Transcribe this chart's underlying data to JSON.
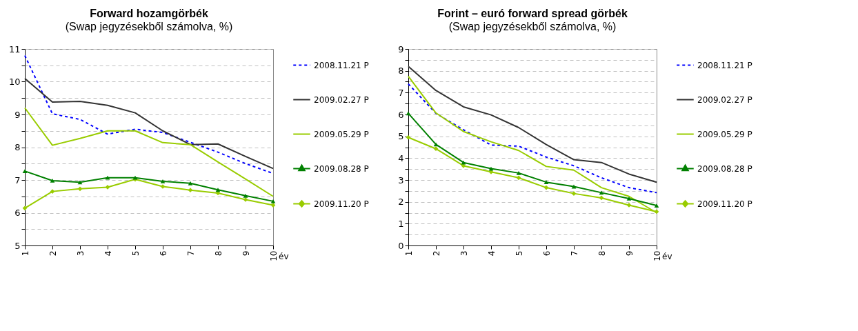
{
  "chart_data": [
    {
      "type": "line",
      "title": "Forward hozamgörbék",
      "subtitle": "(Swap jegyzésekből számolva, %)",
      "xlabel": "év",
      "categories": [
        "1",
        "2",
        "3",
        "4",
        "5",
        "6",
        "7",
        "8",
        "9",
        "10"
      ],
      "ylim": [
        5,
        11
      ],
      "yticks": [
        5,
        {
          "value": 5.5,
          "label": null
        },
        6,
        {
          "value": 6.5,
          "label": null
        },
        7,
        {
          "value": 7.5,
          "label": null
        },
        8,
        {
          "value": 8.5,
          "label": null
        },
        9,
        {
          "value": 9.5,
          "label": null
        },
        10,
        {
          "value": 10.5,
          "label": null
        },
        11
      ],
      "grid": "y",
      "legend": "right",
      "series": [
        {
          "name": "2008.11.21 P",
          "color": "#0000ff",
          "line_style": "dashed",
          "marker": "none",
          "values": [
            10.8,
            9.02,
            8.85,
            8.4,
            8.55,
            8.45,
            8.15,
            7.85,
            7.5,
            7.2
          ]
        },
        {
          "name": "2009.02.27 P",
          "color": "#333333",
          "line_style": "solid",
          "marker": "none",
          "values": [
            10.1,
            9.38,
            9.4,
            9.28,
            9.05,
            8.5,
            8.08,
            8.1,
            7.72,
            7.35
          ]
        },
        {
          "name": "2009.05.29 P",
          "color": "#99cc00",
          "line_style": "solid",
          "marker": "none",
          "values": [
            9.2,
            8.06,
            8.27,
            8.5,
            8.5,
            8.14,
            8.08,
            7.55,
            7.03,
            6.5
          ]
        },
        {
          "name": "2009.08.28 P",
          "color": "#008000",
          "line_style": "solid",
          "marker": "triangle",
          "values": [
            7.27,
            6.98,
            6.93,
            7.07,
            7.07,
            6.96,
            6.9,
            6.7,
            6.52,
            6.35
          ]
        },
        {
          "name": "2009.11.20 P",
          "color": "#99cc00",
          "line_style": "solid",
          "marker": "diamond",
          "values": [
            6.14,
            6.65,
            6.73,
            6.78,
            7.02,
            6.8,
            6.69,
            6.6,
            6.4,
            6.23
          ]
        }
      ]
    },
    {
      "type": "line",
      "title": "Forint – euró forward spread görbék",
      "subtitle": "(Swap jegyzésekből számolva, %)",
      "xlabel": "év",
      "categories": [
        "1",
        "2",
        "3",
        "4",
        "5",
        "6",
        "7",
        "8",
        "9",
        "10"
      ],
      "ylim": [
        0,
        9
      ],
      "yticks": [
        0,
        {
          "value": 0.5,
          "label": null
        },
        1,
        {
          "value": 1.5,
          "label": null
        },
        2,
        {
          "value": 2.5,
          "label": null
        },
        3,
        {
          "value": 3.5,
          "label": null
        },
        4,
        {
          "value": 4.5,
          "label": null
        },
        5,
        {
          "value": 5.5,
          "label": null
        },
        6,
        {
          "value": 6.5,
          "label": null
        },
        7,
        {
          "value": 7.5,
          "label": null
        },
        8,
        {
          "value": 8.5,
          "label": null
        },
        9
      ],
      "grid": "y",
      "legend": "right",
      "series": [
        {
          "name": "2008.11.21 P",
          "color": "#0000ff",
          "line_style": "dashed",
          "marker": "none",
          "values": [
            7.4,
            6.05,
            5.3,
            4.6,
            4.55,
            4.05,
            3.65,
            3.1,
            2.65,
            2.42
          ]
        },
        {
          "name": "2009.02.27 P",
          "color": "#333333",
          "line_style": "solid",
          "marker": "none",
          "values": [
            8.2,
            7.1,
            6.35,
            5.98,
            5.4,
            4.62,
            3.93,
            3.8,
            3.27,
            2.9
          ]
        },
        {
          "name": "2009.05.29 P",
          "color": "#99cc00",
          "line_style": "solid",
          "marker": "none",
          "values": [
            7.75,
            6.07,
            5.22,
            4.75,
            4.35,
            3.62,
            3.45,
            2.65,
            2.25,
            1.5
          ]
        },
        {
          "name": "2009.08.28 P",
          "color": "#008000",
          "line_style": "solid",
          "marker": "triangle",
          "values": [
            6.05,
            4.63,
            3.8,
            3.52,
            3.32,
            2.9,
            2.7,
            2.42,
            2.15,
            1.83
          ]
        },
        {
          "name": "2009.11.20 P",
          "color": "#99cc00",
          "line_style": "solid",
          "marker": "diamond",
          "values": [
            4.95,
            4.43,
            3.65,
            3.37,
            3.1,
            2.65,
            2.38,
            2.18,
            1.85,
            1.55
          ]
        }
      ]
    }
  ]
}
